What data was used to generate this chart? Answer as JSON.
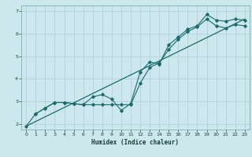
{
  "title": "",
  "xlabel": "Humidex (Indice chaleur)",
  "background_color": "#cce8ec",
  "grid_color": "#aacdd4",
  "line_color": "#1a6b6b",
  "xlim": [
    -0.5,
    23.5
  ],
  "ylim": [
    1.75,
    7.25
  ],
  "xticks": [
    0,
    1,
    2,
    3,
    4,
    5,
    6,
    7,
    8,
    9,
    10,
    11,
    12,
    13,
    14,
    15,
    16,
    17,
    18,
    19,
    20,
    21,
    22,
    23
  ],
  "yticks": [
    2,
    3,
    4,
    5,
    6,
    7
  ],
  "series1_x": [
    0,
    1,
    2,
    3,
    4,
    5,
    6,
    7,
    8,
    9,
    10,
    11,
    12,
    13,
    14,
    15,
    16,
    17,
    18,
    19,
    20,
    21,
    22,
    23
  ],
  "series1_y": [
    1.9,
    2.45,
    2.7,
    2.95,
    2.95,
    2.9,
    2.85,
    3.2,
    3.3,
    3.1,
    2.6,
    2.9,
    4.3,
    4.75,
    4.65,
    5.5,
    5.85,
    6.2,
    6.35,
    6.85,
    6.6,
    6.55,
    6.65,
    6.6
  ],
  "series2_x": [
    1,
    2,
    3,
    4,
    5,
    6,
    7,
    8,
    9,
    10,
    11,
    12,
    13,
    14,
    15,
    16,
    17,
    18,
    19,
    20,
    21,
    22,
    23
  ],
  "series2_y": [
    2.45,
    2.7,
    2.95,
    2.95,
    2.9,
    2.85,
    2.85,
    2.85,
    2.85,
    2.85,
    2.85,
    3.8,
    4.5,
    4.7,
    5.3,
    5.75,
    6.1,
    6.3,
    6.65,
    6.35,
    6.25,
    6.4,
    6.35
  ],
  "series3_x": [
    0,
    23
  ],
  "series3_y": [
    1.9,
    6.65
  ]
}
